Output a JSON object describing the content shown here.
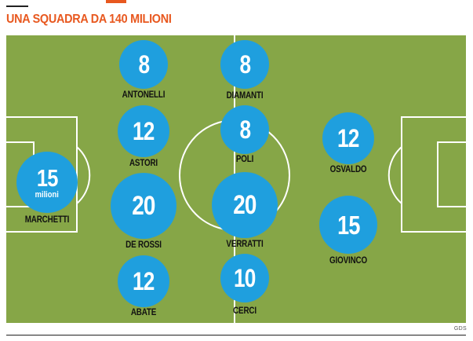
{
  "headline": "UNA SQUADRA DA 140 MILIONI",
  "credit": "GDS",
  "colors": {
    "accent": "#e8581f",
    "pitch": "#86a647",
    "lines": "#ffffff",
    "disc": "#1f9fde",
    "text": "#111111"
  },
  "players": [
    {
      "name": "MARCHETTI",
      "value": "15",
      "unit": "milioni"
    },
    {
      "name": "ANTONELLI",
      "value": "8"
    },
    {
      "name": "ASTORI",
      "value": "12"
    },
    {
      "name": "DE ROSSI",
      "value": "20"
    },
    {
      "name": "ABATE",
      "value": "12"
    },
    {
      "name": "DIAMANTI",
      "value": "8"
    },
    {
      "name": "POLI",
      "value": "8"
    },
    {
      "name": "VERRATTI",
      "value": "20"
    },
    {
      "name": "CERCI",
      "value": "10"
    },
    {
      "name": "OSVALDO",
      "value": "12"
    },
    {
      "name": "GIOVINCO",
      "value": "15"
    }
  ]
}
